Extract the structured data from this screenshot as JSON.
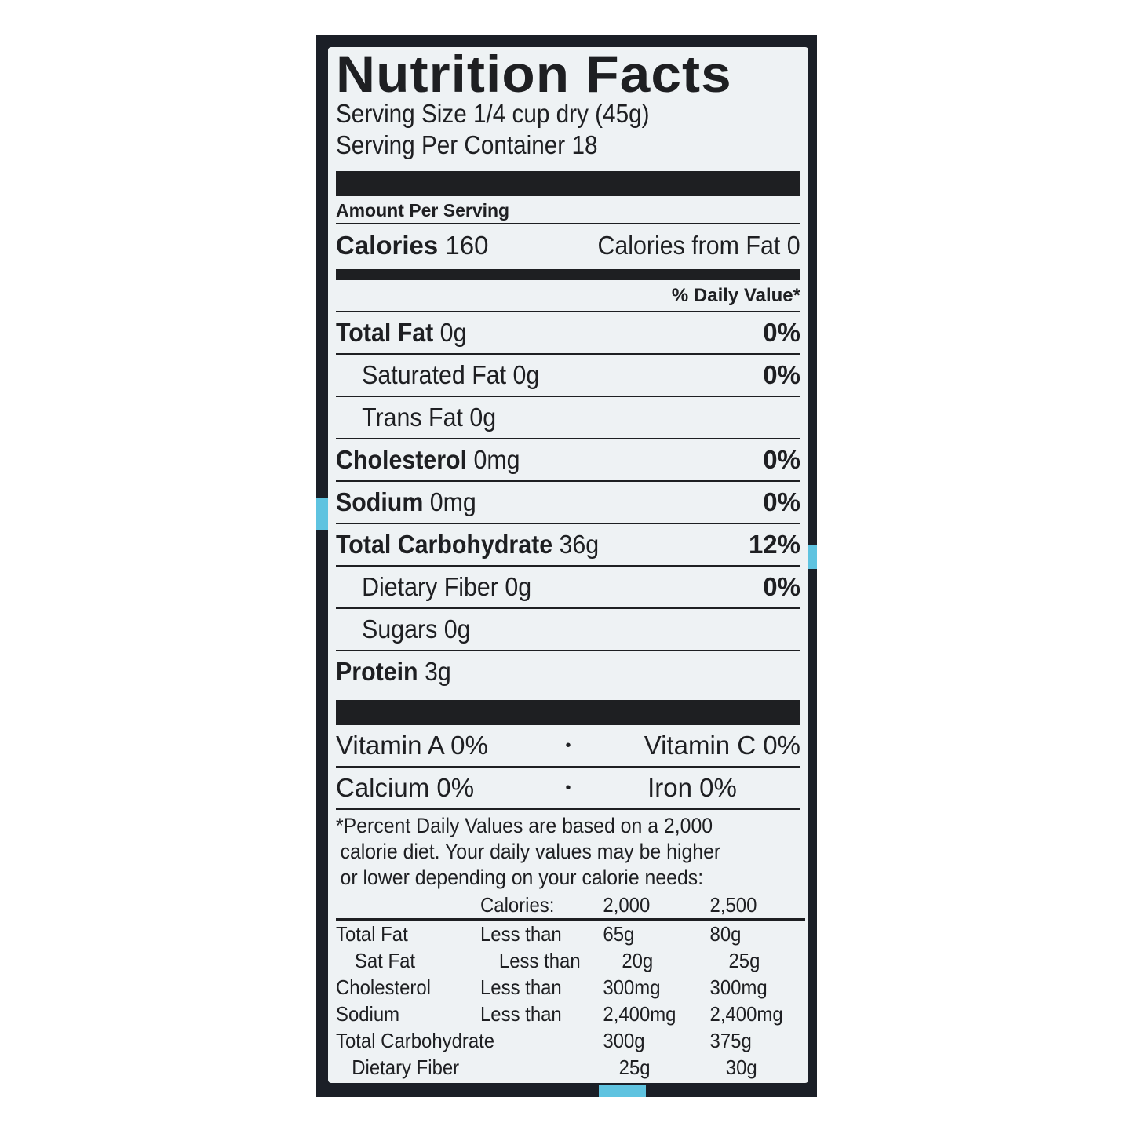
{
  "colors": {
    "package": "#1b1f27",
    "label": "#eef2f4",
    "ink": "#1e1f22",
    "accent": "#5fc3e0"
  },
  "title": "Nutrition Facts",
  "serving_size": "Serving Size 1/4 cup dry (45g)",
  "servings_per_container": "Serving Per Container 18",
  "amount_per_serving": "Amount Per Serving",
  "calories": {
    "label": "Calories",
    "value": "160",
    "from_fat": "Calories from Fat 0"
  },
  "daily_value_header": "% Daily Value*",
  "nutrients": [
    {
      "label": "Total Fat",
      "amount": "0g",
      "dv": "0%",
      "bold": true
    },
    {
      "label": "Saturated Fat",
      "amount": "0g",
      "dv": "0%",
      "bold": false
    },
    {
      "label": "Trans Fat",
      "amount": "0g",
      "dv": "",
      "bold": false
    },
    {
      "label": "Cholesterol",
      "amount": "0mg",
      "dv": "0%",
      "bold": true
    },
    {
      "label": "Sodium",
      "amount": "0mg",
      "dv": "0%",
      "bold": true
    },
    {
      "label": "Total Carbohydrate",
      "amount": "36g",
      "dv": "12%",
      "bold": true
    },
    {
      "label": "Dietary Fiber",
      "amount": "0g",
      "dv": "0%",
      "bold": false
    },
    {
      "label": "Sugars",
      "amount": "0g",
      "dv": "",
      "bold": false
    },
    {
      "label": "Protein",
      "amount": "3g",
      "dv": "",
      "bold": true
    }
  ],
  "vitamins": [
    {
      "left": "Vitamin A 0%",
      "sep": "•",
      "right": "Vitamin C 0%"
    },
    {
      "left": "Calcium 0%",
      "sep": "•",
      "right": "Iron 0%"
    }
  ],
  "footnote": [
    "*Percent Daily Values are based on a 2,000",
    "calorie diet. Your daily values may be higher",
    "or lower depending on your calorie needs:"
  ],
  "dv_table": {
    "header": [
      "",
      "Calories:",
      "2,000",
      "2,500"
    ],
    "rows": [
      [
        "Total Fat",
        "Less than",
        "65g",
        "80g"
      ],
      [
        "Sat Fat",
        "Less than",
        "20g",
        "25g"
      ],
      [
        "Cholesterol",
        "Less than",
        "300mg",
        "300mg"
      ],
      [
        "Sodium",
        "Less than",
        "2,400mg",
        "2,400mg"
      ],
      [
        "Total Carbohydrate",
        "",
        "300g",
        "375g"
      ],
      [
        "Dietary Fiber",
        "",
        "25g",
        "30g"
      ]
    ]
  }
}
